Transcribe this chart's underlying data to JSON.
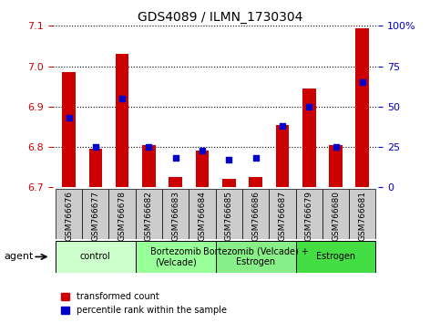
{
  "title": "GDS4089 / ILMN_1730304",
  "samples": [
    "GSM766676",
    "GSM766677",
    "GSM766678",
    "GSM766682",
    "GSM766683",
    "GSM766684",
    "GSM766685",
    "GSM766686",
    "GSM766687",
    "GSM766679",
    "GSM766680",
    "GSM766681"
  ],
  "red_values": [
    6.985,
    6.795,
    7.03,
    6.805,
    6.725,
    6.79,
    6.72,
    6.725,
    6.855,
    6.945,
    6.805,
    7.095
  ],
  "blue_values": [
    43,
    25,
    55,
    25,
    18,
    23,
    17,
    18,
    38,
    50,
    25,
    65
  ],
  "ylim_left": [
    6.7,
    7.1
  ],
  "ylim_right": [
    0,
    100
  ],
  "yticks_left": [
    6.7,
    6.8,
    6.9,
    7.0,
    7.1
  ],
  "yticks_right": [
    0,
    25,
    50,
    75,
    100
  ],
  "left_color": "#cc0000",
  "right_color": "#0000cc",
  "bar_color": "#cc0000",
  "dot_color": "#0000cc",
  "groups": [
    {
      "label": "control",
      "indices": [
        0,
        1,
        2
      ],
      "color": "#ccffcc"
    },
    {
      "label": "Bortezomib\n(Velcade)",
      "indices": [
        3,
        4,
        5
      ],
      "color": "#99ff99"
    },
    {
      "label": "Bortezomib (Velcade) +\nEstrogen",
      "indices": [
        6,
        7,
        8
      ],
      "color": "#88ee88"
    },
    {
      "label": "Estrogen",
      "indices": [
        9,
        10,
        11
      ],
      "color": "#44dd44"
    }
  ],
  "legend_red": "transformed count",
  "legend_blue": "percentile rank within the sample",
  "bar_width": 0.5,
  "gray_color": "#cccccc"
}
